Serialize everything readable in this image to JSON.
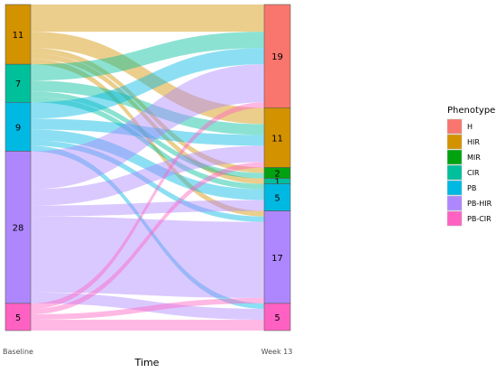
{
  "chart_data": {
    "type": "alluvial",
    "xlabel": "Time",
    "time_points": [
      "Baseline",
      "Week 13"
    ],
    "legend": {
      "title": "Phenotype",
      "placement": "right",
      "items": [
        {
          "label": "H",
          "color": "#F8766D"
        },
        {
          "label": "HIR",
          "color": "#D39200"
        },
        {
          "label": "MIR",
          "color": "#00A30F"
        },
        {
          "label": "CIR",
          "color": "#00BF9B"
        },
        {
          "label": "PB",
          "color": "#00B9E3"
        },
        {
          "label": "PB-HIR",
          "color": "#AE87FF"
        },
        {
          "label": "PB-CIR",
          "color": "#FF61C3"
        }
      ]
    },
    "baseline": [
      {
        "phenotype": "HIR",
        "count": 11
      },
      {
        "phenotype": "CIR",
        "count": 7
      },
      {
        "phenotype": "PB",
        "count": 9
      },
      {
        "phenotype": "PB-HIR",
        "count": 28
      },
      {
        "phenotype": "PB-CIR",
        "count": 5
      }
    ],
    "week13": [
      {
        "phenotype": "H",
        "count": 19
      },
      {
        "phenotype": "HIR",
        "count": 11
      },
      {
        "phenotype": "MIR",
        "count": 2
      },
      {
        "phenotype": "CIR",
        "count": 1
      },
      {
        "phenotype": "PB",
        "count": 5
      },
      {
        "phenotype": "PB-HIR",
        "count": 17
      },
      {
        "phenotype": "PB-CIR",
        "count": 5
      }
    ],
    "flows": [
      {
        "from": "HIR",
        "to": "H",
        "value": 5
      },
      {
        "from": "HIR",
        "to": "HIR",
        "value": 3
      },
      {
        "from": "HIR",
        "to": "MIR",
        "value": 1
      },
      {
        "from": "HIR",
        "to": "CIR",
        "value": 1
      },
      {
        "from": "HIR",
        "to": "PB-HIR",
        "value": 1
      },
      {
        "from": "CIR",
        "to": "H",
        "value": 3
      },
      {
        "from": "CIR",
        "to": "HIR",
        "value": 2
      },
      {
        "from": "CIR",
        "to": "MIR",
        "value": 1
      },
      {
        "from": "CIR",
        "to": "PB",
        "value": 1
      },
      {
        "from": "PB",
        "to": "H",
        "value": 3
      },
      {
        "from": "PB",
        "to": "HIR",
        "value": 2
      },
      {
        "from": "PB",
        "to": "PB",
        "value": 2
      },
      {
        "from": "PB",
        "to": "PB-HIR",
        "value": 1
      },
      {
        "from": "PB",
        "to": "PB-CIR",
        "value": 1
      },
      {
        "from": "PB-HIR",
        "to": "H",
        "value": 7
      },
      {
        "from": "PB-HIR",
        "to": "HIR",
        "value": 3
      },
      {
        "from": "PB-HIR",
        "to": "PB",
        "value": 2
      },
      {
        "from": "PB-HIR",
        "to": "PB-HIR",
        "value": 14
      },
      {
        "from": "PB-HIR",
        "to": "PB-CIR",
        "value": 2
      },
      {
        "from": "PB-CIR",
        "to": "H",
        "value": 1
      },
      {
        "from": "PB-CIR",
        "to": "HIR",
        "value": 1
      },
      {
        "from": "PB-CIR",
        "to": "PB-HIR",
        "value": 1
      },
      {
        "from": "PB-CIR",
        "to": "PB-CIR",
        "value": 2
      }
    ]
  }
}
